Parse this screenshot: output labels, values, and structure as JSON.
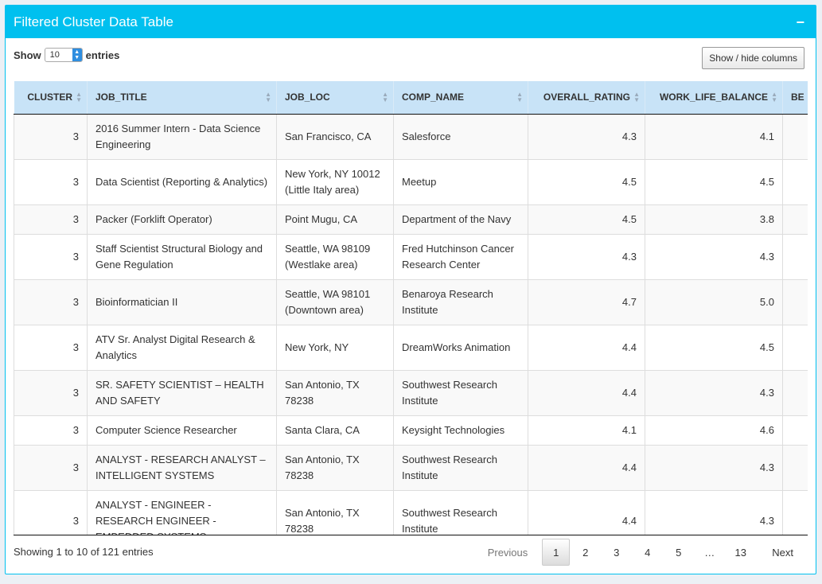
{
  "header": {
    "title": "Filtered Cluster Data Table",
    "collapse": "−"
  },
  "controls": {
    "show_label": "Show",
    "entries_value": "10",
    "entries_label": "entries",
    "colvis_label": "Show / hide columns"
  },
  "columns": [
    "CLUSTER",
    "JOB_TITLE",
    "JOB_LOC",
    "COMP_NAME",
    "OVERALL_RATING",
    "WORK_LIFE_BALANCE",
    "BE"
  ],
  "rows": [
    [
      "3",
      "2016 Summer Intern - Data Science Engineering",
      "San Francisco, CA",
      "Salesforce",
      "4.3",
      "4.1",
      ""
    ],
    [
      "3",
      "Data Scientist (Reporting & Analytics)",
      "New York, NY 10012 (Little Italy area)",
      "Meetup",
      "4.5",
      "4.5",
      ""
    ],
    [
      "3",
      "Packer (Forklift Operator)",
      "Point Mugu, CA",
      "Department of the Navy",
      "4.5",
      "3.8",
      ""
    ],
    [
      "3",
      "Staff Scientist Structural Biology and Gene Regulation",
      "Seattle, WA 98109 (Westlake area)",
      "Fred Hutchinson Cancer Research Center",
      "4.3",
      "4.3",
      ""
    ],
    [
      "3",
      "Bioinformatician II",
      "Seattle, WA 98101 (Downtown area)",
      "Benaroya Research Institute",
      "4.7",
      "5.0",
      ""
    ],
    [
      "3",
      "ATV Sr. Analyst Digital Research & Analytics",
      "New York, NY",
      "DreamWorks Animation",
      "4.4",
      "4.5",
      ""
    ],
    [
      "3",
      "SR. SAFETY SCIENTIST – HEALTH AND SAFETY",
      "San Antonio, TX 78238",
      "Southwest Research Institute",
      "4.4",
      "4.3",
      ""
    ],
    [
      "3",
      "Computer Science Researcher",
      "Santa Clara, CA",
      "Keysight Technologies",
      "4.1",
      "4.6",
      ""
    ],
    [
      "3",
      "ANALYST - RESEARCH ANALYST – INTELLIGENT SYSTEMS",
      "San Antonio, TX 78238",
      "Southwest Research Institute",
      "4.4",
      "4.3",
      ""
    ],
    [
      "3",
      "ANALYST - ENGINEER - RESEARCH ENGINEER - EMBEDDED SYSTEMS",
      "San Antonio, TX 78238",
      "Southwest Research Institute",
      "4.4",
      "4.3",
      ""
    ]
  ],
  "footer": {
    "info": "Showing 1 to 10 of 121 entries",
    "pager": {
      "previous": "Previous",
      "pages": [
        "1",
        "2",
        "3",
        "4",
        "5",
        "…",
        "13"
      ],
      "current": "1",
      "next": "Next"
    }
  }
}
